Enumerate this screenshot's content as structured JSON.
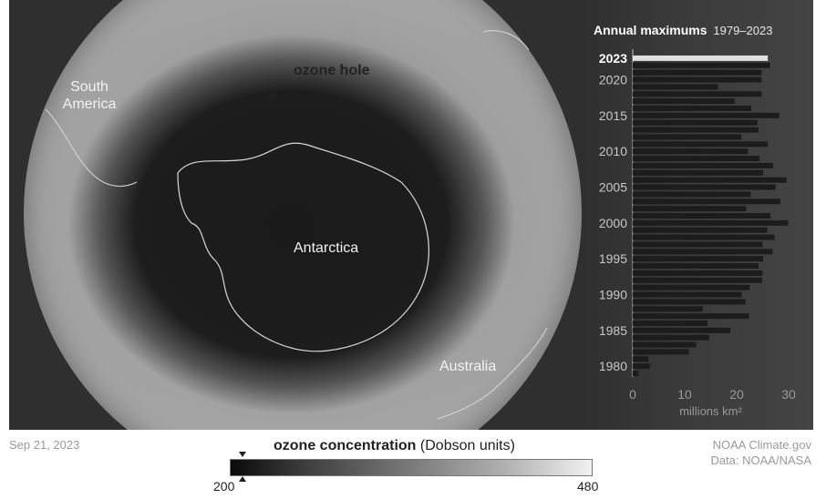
{
  "map": {
    "labels": {
      "south_america": "South\nAmerica",
      "ozone_hole": "ozone hole",
      "antarctica": "Antarctica",
      "australia": "Australia"
    }
  },
  "footer": {
    "date": "Sep 21, 2023",
    "credit_line1": "NOAA Climate.gov",
    "credit_line2": "Data: NOAA/NASA"
  },
  "legend": {
    "title_bold": "ozone concentration",
    "title_rest": "(Dobson units)",
    "min_label": "200",
    "max_label": "480",
    "min_value": 200,
    "max_value": 480,
    "marker_value": 210
  },
  "colors": {
    "bar": "#1c1c1c",
    "highlight_bar": "#e0e0e0",
    "panel": "#2f2f2f"
  },
  "chart_data": {
    "type": "bar",
    "orientation": "horizontal",
    "title": "Annual maximums",
    "subtitle": "1979–2023",
    "xlabel": "millions km²",
    "xlim": [
      0,
      30
    ],
    "x_ticks": [
      "0",
      "10",
      "20",
      "30"
    ],
    "y_tick_labels": [
      "1980",
      "1985",
      "1990",
      "1995",
      "2000",
      "2005",
      "2010",
      "2015",
      "2020",
      "2023"
    ],
    "highlight_year": 2023,
    "years": [
      1979,
      1980,
      1981,
      1982,
      1983,
      1984,
      1985,
      1986,
      1987,
      1988,
      1989,
      1990,
      1991,
      1992,
      1993,
      1994,
      1995,
      1996,
      1997,
      1998,
      1999,
      2000,
      2001,
      2002,
      2003,
      2004,
      2005,
      2006,
      2007,
      2008,
      2009,
      2010,
      2011,
      2012,
      2013,
      2014,
      2015,
      2016,
      2017,
      2018,
      2019,
      2020,
      2021,
      2022,
      2023
    ],
    "values": [
      1.1,
      3.3,
      3.0,
      10.8,
      12.2,
      14.7,
      18.8,
      14.4,
      22.4,
      13.5,
      21.7,
      21.0,
      22.5,
      24.9,
      25.0,
      24.2,
      25.1,
      26.9,
      25.0,
      27.3,
      25.9,
      29.9,
      26.5,
      21.8,
      28.4,
      22.7,
      27.5,
      29.6,
      25.1,
      27.0,
      24.4,
      22.2,
      26.0,
      20.9,
      24.2,
      24.0,
      28.2,
      22.8,
      19.6,
      24.8,
      16.4,
      24.8,
      24.8,
      26.4,
      26.0
    ]
  }
}
